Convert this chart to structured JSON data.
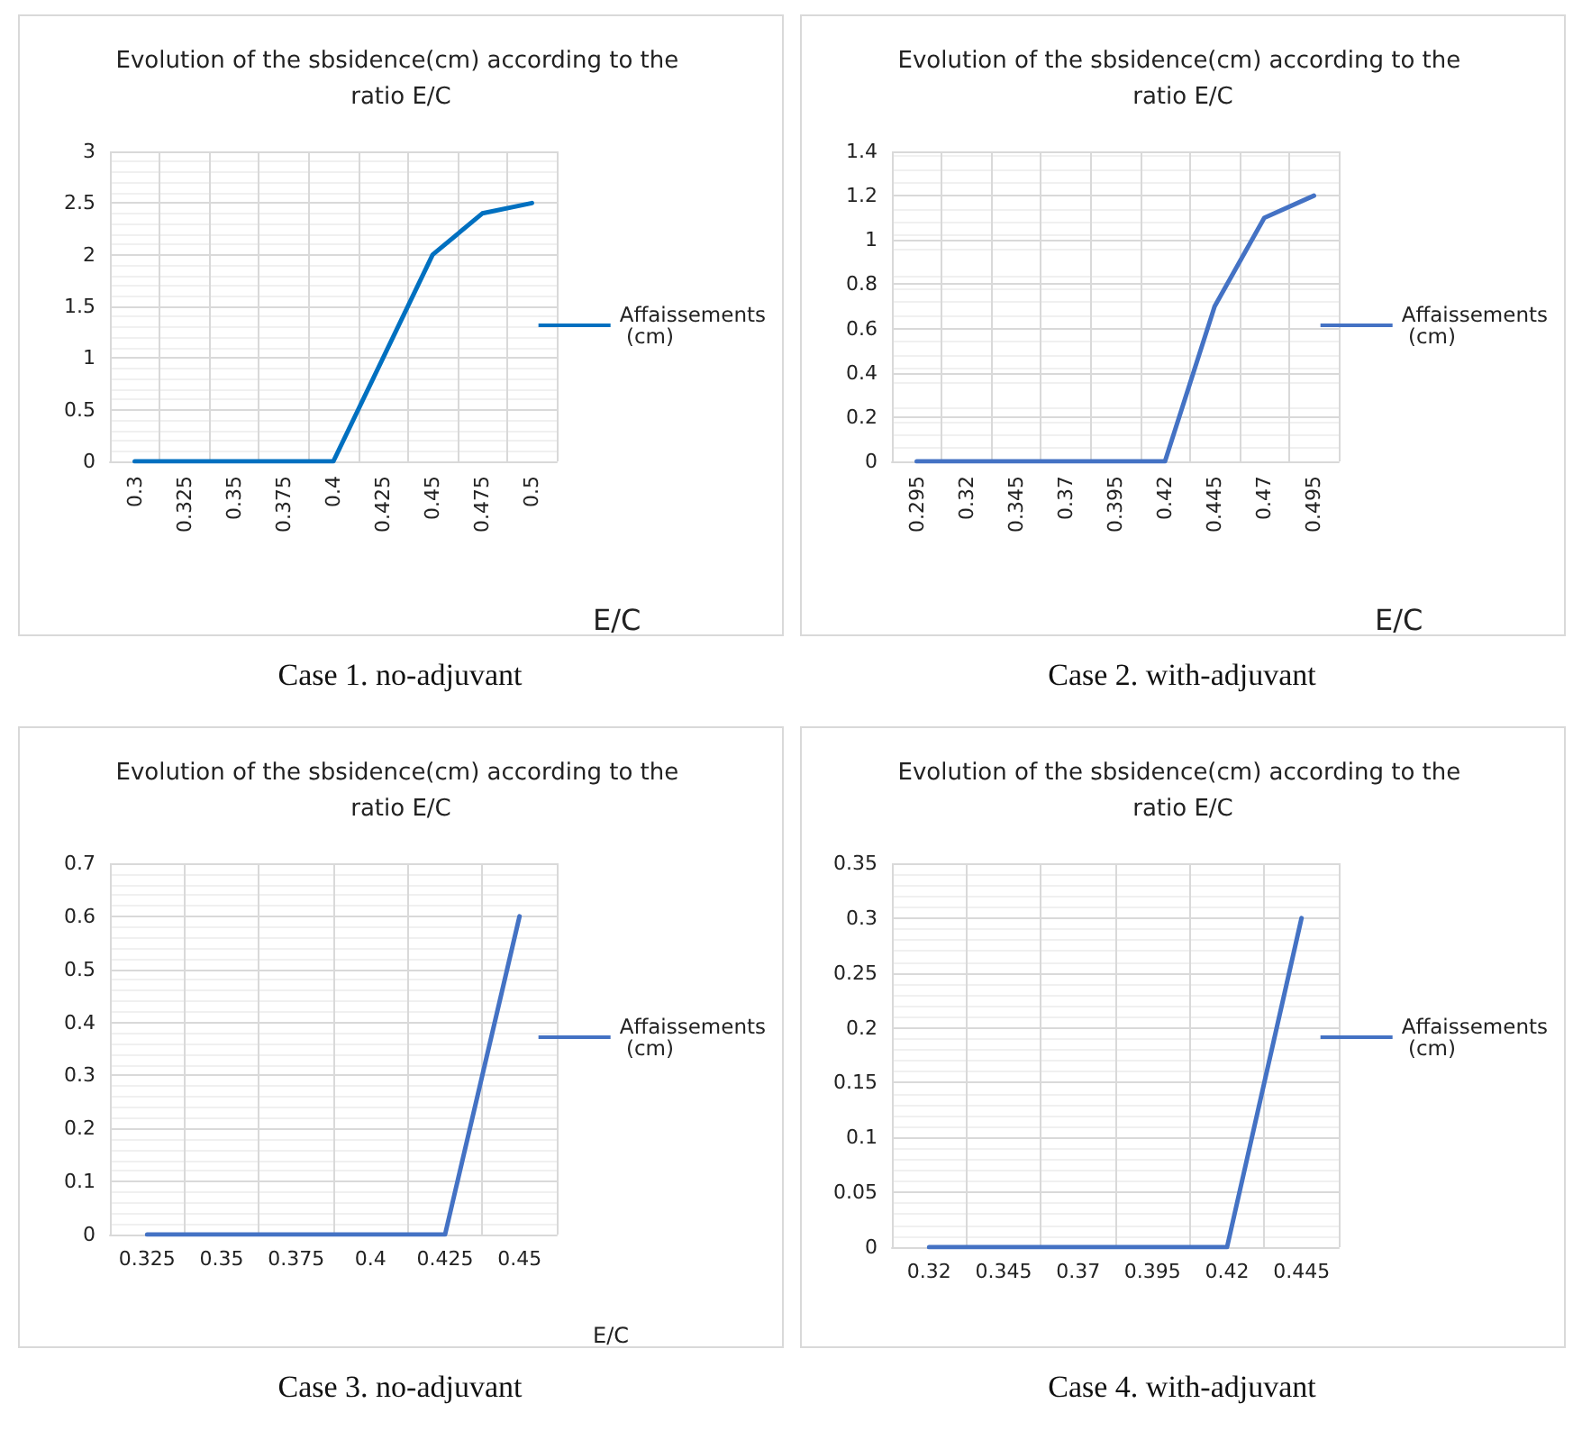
{
  "chart_data": [
    {
      "type": "line",
      "title": "Evolution of the sbsidence(cm) according to the ratio E/C",
      "xlabel": "E/C",
      "categories": [
        "0.3",
        "0.325",
        "0.35",
        "0.375",
        "0.4",
        "0.425",
        "0.45",
        "0.475",
        "0.5"
      ],
      "series": [
        {
          "name": "Affaissements (cm)",
          "color": "#0070c0",
          "values": [
            0,
            0,
            0,
            0,
            0,
            1,
            2,
            2.4,
            2.5
          ]
        }
      ],
      "ylim": [
        0,
        3
      ],
      "yticks": [
        0,
        0.5,
        1,
        1.5,
        2,
        2.5,
        3
      ],
      "grid": true,
      "legend": "right",
      "marker": "none",
      "line_style": "solid",
      "annotations": [
        "Case 1. no-adjuvant"
      ]
    },
    {
      "type": "line",
      "title": "Evolution of the sbsidence(cm) according to the ratio E/C",
      "xlabel": "E/C",
      "categories": [
        "0.295",
        "0.32",
        "0.345",
        "0.37",
        "0.395",
        "0.42",
        "0.445",
        "0.47",
        "0.495"
      ],
      "series": [
        {
          "name": "Affaissements (cm)",
          "color": "#4472c4",
          "values": [
            0,
            0,
            0,
            0,
            0,
            0,
            0.7,
            1.1,
            1.2
          ]
        }
      ],
      "ylim": [
        0,
        1.4
      ],
      "yticks": [
        0,
        0.2,
        0.4,
        0.6,
        0.8,
        1,
        1.2,
        1.4
      ],
      "grid": true,
      "legend": "right",
      "marker": "none",
      "line_style": "solid",
      "annotations": [
        "Case 2. with-adjuvant"
      ]
    },
    {
      "type": "line",
      "title": "Evolution of the sbsidence(cm) according to the ratio E/C",
      "xlabel": "E/C",
      "categories": [
        "0.325",
        "0.35",
        "0.375",
        "0.4",
        "0.425",
        "0.45"
      ],
      "series": [
        {
          "name": "Affaissements (cm)",
          "color": "#4472c4",
          "values": [
            0,
            0,
            0,
            0,
            0,
            0.6
          ]
        }
      ],
      "ylim": [
        0,
        0.7
      ],
      "yticks": [
        0,
        0.1,
        0.2,
        0.3,
        0.4,
        0.5,
        0.6,
        0.7
      ],
      "grid": true,
      "legend": "right",
      "marker": "none",
      "line_style": "solid",
      "annotations": [
        "Case 3. no-adjuvant"
      ]
    },
    {
      "type": "line",
      "title": "Evolution of the sbsidence(cm) according to the ratio E/C",
      "categories": [
        "0.32",
        "0.345",
        "0.37",
        "0.395",
        "0.42",
        "0.445"
      ],
      "series": [
        {
          "name": "Affaissements (cm)",
          "color": "#4472c4",
          "values": [
            0,
            0,
            0,
            0,
            0,
            0.3
          ]
        }
      ],
      "ylim": [
        0,
        0.35
      ],
      "yticks": [
        0,
        0.05,
        0.1,
        0.15,
        0.2,
        0.25,
        0.3,
        0.35
      ],
      "grid": true,
      "legend": "right",
      "marker": "none",
      "line_style": "solid",
      "annotations": [
        "Case 4. with-adjuvant"
      ]
    }
  ]
}
